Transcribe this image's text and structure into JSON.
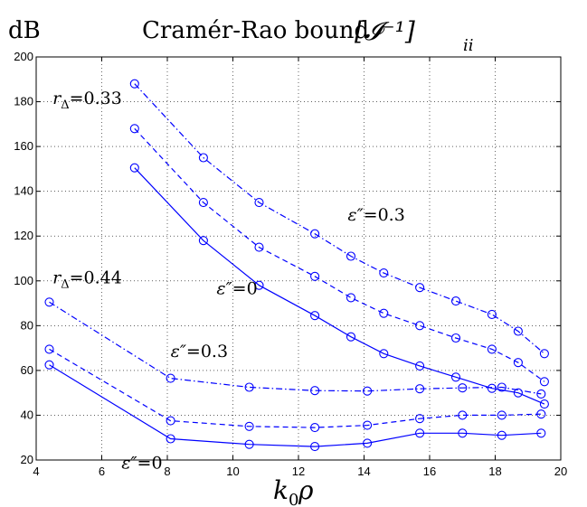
{
  "chart_data": {
    "type": "line",
    "title": "Cramér-Rao bound",
    "title_math": "[𝓘⁻¹]",
    "title_subscript": "ii",
    "ylabel": "dB",
    "xlabel": "k",
    "xlabel_sub": "0",
    "xlabel_tail": "ρ",
    "xlim": [
      4,
      20
    ],
    "ylim": [
      20,
      200
    ],
    "xticks": [
      4,
      6,
      8,
      10,
      12,
      14,
      16,
      18,
      20
    ],
    "yticks": [
      20,
      40,
      60,
      80,
      100,
      120,
      140,
      160,
      180,
      200
    ],
    "grid": true,
    "line_color": "#0000ff",
    "annotations": [
      {
        "text": "r",
        "sub": "Δ",
        "tail": "=0.33",
        "x": 4.5,
        "y": 179
      },
      {
        "text": "ε″",
        "tail": "=0.3",
        "x": 13.5,
        "y": 127
      },
      {
        "text": "r",
        "sub": "Δ",
        "tail": "=0.44",
        "x": 4.5,
        "y": 99
      },
      {
        "text": "ε″",
        "tail": "=0",
        "x": 9.5,
        "y": 94
      },
      {
        "text": "ε″",
        "tail": "=0.3",
        "x": 8.1,
        "y": 66
      },
      {
        "text": "ε″",
        "tail": "=0",
        "x": 6.6,
        "y": 16.2
      }
    ],
    "series": [
      {
        "style": "dashdot",
        "x": [
          7.0,
          9.1,
          10.8,
          12.5,
          13.6,
          14.6,
          15.7,
          16.8,
          17.9,
          18.7,
          19.5
        ],
        "y": [
          188,
          155,
          135,
          121,
          111,
          103.5,
          97,
          91,
          85,
          77.5,
          67.5
        ]
      },
      {
        "style": "dashed",
        "x": [
          7.0,
          9.1,
          10.8,
          12.5,
          13.6,
          14.6,
          15.7,
          16.8,
          17.9,
          18.7,
          19.5
        ],
        "y": [
          168,
          135,
          115,
          102,
          92.5,
          85.5,
          80,
          74.5,
          69.5,
          63.5,
          55
        ]
      },
      {
        "style": "solid",
        "x": [
          7.0,
          9.1,
          10.8,
          12.5,
          13.6,
          14.6,
          15.7,
          16.8,
          17.9,
          18.7,
          19.5
        ],
        "y": [
          150.5,
          118,
          98,
          84.5,
          75,
          67.5,
          62,
          57,
          52,
          50,
          45
        ]
      },
      {
        "style": "dashdot",
        "x": [
          4.4,
          8.1,
          10.5,
          12.5,
          14.1,
          15.7,
          17.0,
          18.2,
          19.4
        ],
        "y": [
          90.5,
          56.5,
          52.5,
          51,
          50.8,
          51.8,
          52.2,
          52.5,
          49.5
        ]
      },
      {
        "style": "dashed",
        "x": [
          4.4,
          8.1,
          10.5,
          12.5,
          14.1,
          15.7,
          17.0,
          18.2,
          19.4
        ],
        "y": [
          69.5,
          37.5,
          35,
          34.5,
          35.5,
          38.5,
          40,
          40,
          40.5
        ]
      },
      {
        "style": "solid",
        "x": [
          4.4,
          8.1,
          10.5,
          12.5,
          14.1,
          15.7,
          17.0,
          18.2,
          19.4
        ],
        "y": [
          62.5,
          29.5,
          27,
          26,
          27.5,
          32,
          32,
          31,
          32
        ]
      }
    ]
  }
}
